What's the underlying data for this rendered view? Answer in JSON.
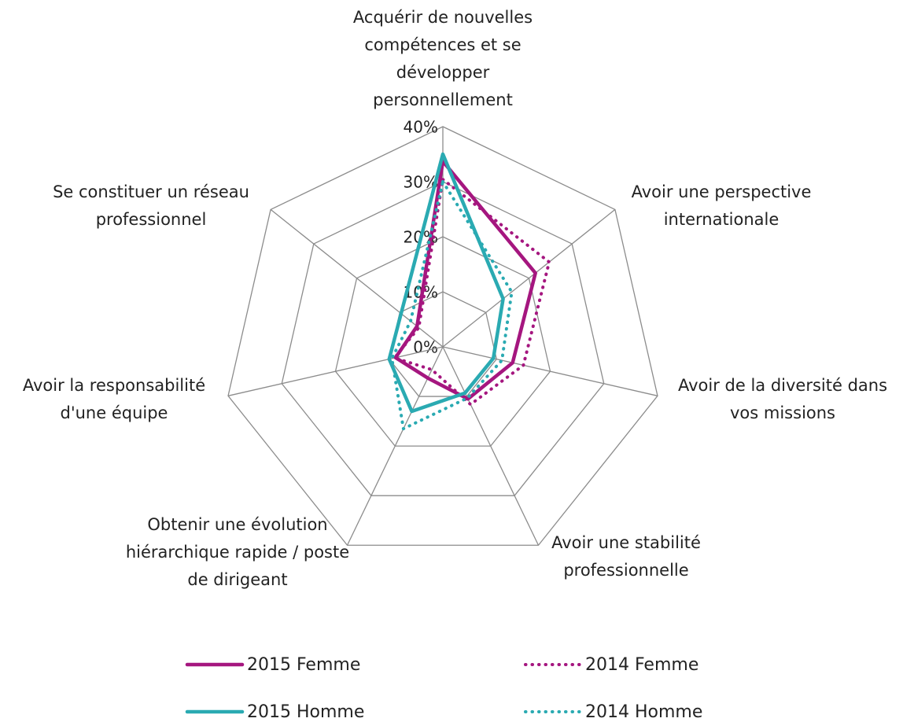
{
  "chart_data": {
    "type": "radar",
    "categories": [
      "Acquérir de nouvelles compétences et se développer personnellement",
      "Avoir une perspective internationale",
      "Avoir de la diversité dans vos missions",
      "Avoir une stabilité professionnelle",
      "Obtenir une évolution hiérarchique rapide / poste de dirigeant",
      "Avoir la responsabilité d'une équipe",
      "Se constituer un réseau professionnel"
    ],
    "series": [
      {
        "name": "2015 Femme",
        "color": "#a5167f",
        "style": "solid",
        "values": [
          33.7,
          21.5,
          13,
          10.5,
          6.3,
          8.8,
          6
        ]
      },
      {
        "name": "2014 Femme",
        "color": "#a5167f",
        "style": "dotted",
        "values": [
          30.4,
          24.7,
          15,
          11.6,
          4.6,
          9,
          5.6
        ]
      },
      {
        "name": "2015 Homme",
        "color": "#2aaab2",
        "style": "solid",
        "values": [
          35,
          14,
          9.4,
          9.3,
          13,
          10,
          9.7
        ]
      },
      {
        "name": "2014 Homme",
        "color": "#2aaab2",
        "style": "dotted",
        "values": [
          30,
          16,
          11,
          10.3,
          16.5,
          9.5,
          7.5
        ]
      }
    ],
    "ylim": [
      0,
      40
    ],
    "yticks": [
      {
        "value": 0,
        "label": "0%"
      },
      {
        "value": 10,
        "label": "10%"
      },
      {
        "value": 20,
        "label": "20%"
      },
      {
        "value": 30,
        "label": "30%"
      },
      {
        "value": 40,
        "label": "40%"
      }
    ],
    "grid": true
  }
}
